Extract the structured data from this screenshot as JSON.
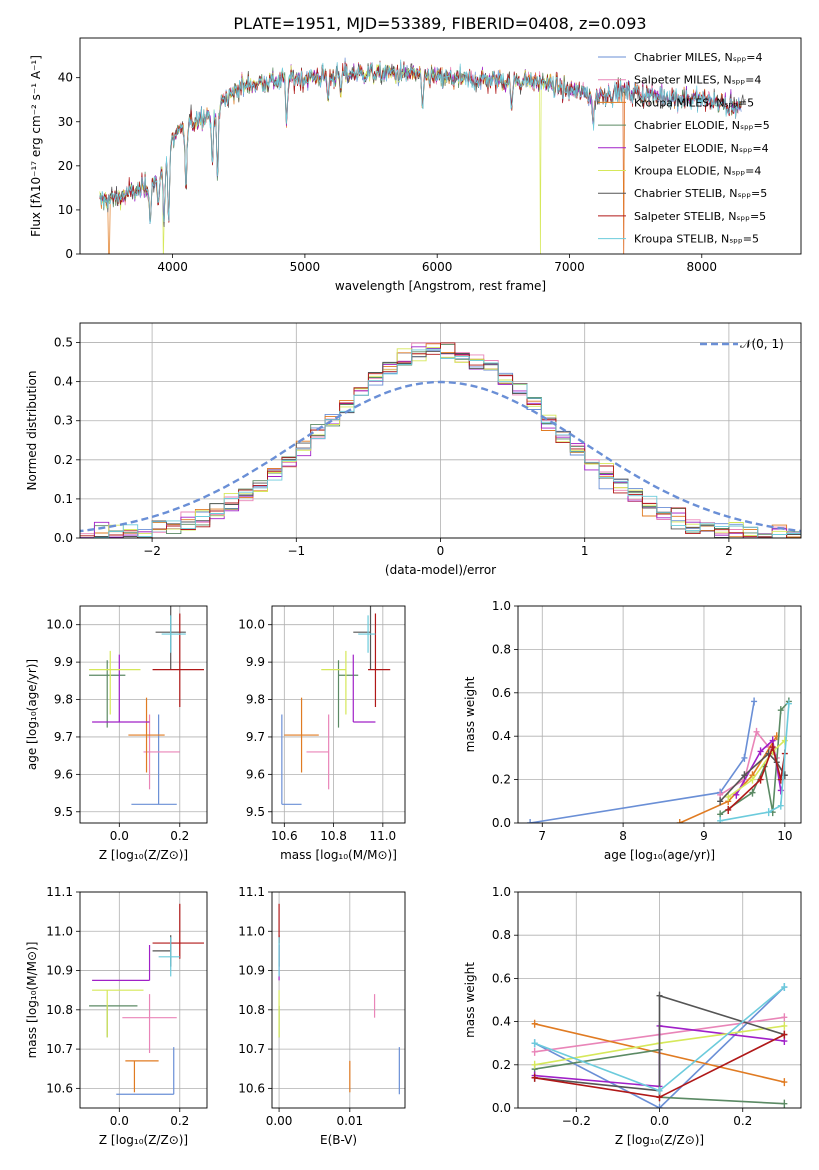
{
  "title": "PLATE=1951, MJD=53389, FIBERID=0408, z=0.093",
  "colors": {
    "Chabrier MILES": "#6a8fd6",
    "Salpeter MILES": "#e985b8",
    "Kroupa MILES": "#e07b22",
    "Chabrier ELODIE": "#5b8a64",
    "Salpeter ELODIE": "#a020c8",
    "Kroupa ELODIE": "#d6e85a",
    "Chabrier STELIB": "#555555",
    "Salpeter STELIB": "#b01818",
    "Kroupa STELIB": "#6ccbdc"
  },
  "chart_data": [
    {
      "type": "line",
      "id": "spectrum",
      "xlabel": "wavelength [Angstrom, rest frame]",
      "ylabel": "Flux [fλ10⁻¹⁷ erg cm⁻² s⁻¹ A⁻¹]",
      "xlim": [
        3300,
        8750
      ],
      "ylim": [
        0,
        49
      ],
      "xticks": [
        4000,
        5000,
        6000,
        7000,
        8000
      ],
      "yticks": [
        0,
        10,
        20,
        30,
        40
      ],
      "legend_position": "top-right",
      "legend": [
        {
          "label": "Chabrier MILES, Nₛₚₚ=4",
          "series": "Chabrier MILES"
        },
        {
          "label": "Salpeter MILES, Nₛₚₚ=4",
          "series": "Salpeter MILES"
        },
        {
          "label": "Kroupa MILES, Nₛₚₚ=5",
          "series": "Kroupa MILES"
        },
        {
          "label": "Chabrier ELODIE, Nₛₚₚ=5",
          "series": "Chabrier ELODIE"
        },
        {
          "label": "Salpeter ELODIE, Nₛₚₚ=4",
          "series": "Salpeter ELODIE"
        },
        {
          "label": "Kroupa ELODIE, Nₛₚₚ=4",
          "series": "Kroupa ELODIE"
        },
        {
          "label": "Chabrier STELIB, Nₛₚₚ=5",
          "series": "Chabrier STELIB"
        },
        {
          "label": "Salpeter STELIB, Nₛₚₚ=5",
          "series": "Salpeter STELIB"
        },
        {
          "label": "Kroupa STELIB, Nₛₚₚ=5",
          "series": "Kroupa STELIB"
        }
      ],
      "continuum": {
        "x": [
          3450,
          3600,
          3750,
          3900,
          4000,
          4100,
          4200,
          4300,
          4500,
          4700,
          5000,
          5300,
          5500,
          5800,
          6000,
          6200,
          6400,
          6600,
          6800,
          7000,
          7200,
          7400,
          7600,
          7800,
          8000,
          8200,
          8300
        ],
        "y": [
          12,
          13,
          14.5,
          17,
          26,
          29,
          31,
          32,
          38,
          39,
          40,
          41,
          41,
          41,
          40,
          39.5,
          39.5,
          39.5,
          39,
          37,
          36,
          37,
          36,
          35.5,
          35,
          34,
          33.5
        ]
      },
      "dips": {
        "x": [
          3830,
          3890,
          3935,
          3970,
          4101,
          4300,
          4340,
          4861,
          5175,
          5270,
          5890,
          6563,
          7180,
          8200
        ],
        "y": [
          7,
          11,
          7,
          7,
          14,
          20,
          17,
          30,
          35,
          36,
          33,
          33,
          29,
          32
        ]
      },
      "drops": {
        "x": [
          3520,
          3930,
          6780,
          7410
        ],
        "y": [
          0,
          0,
          0,
          0
        ]
      }
    },
    {
      "type": "bar",
      "id": "residuals",
      "xlabel": "(data-model)/error",
      "ylabel": "Normed distribution",
      "xlim": [
        -2.5,
        2.5
      ],
      "ylim": [
        0,
        0.55
      ],
      "xticks": [
        -2,
        -1,
        0,
        1,
        2
      ],
      "yticks": [
        0.0,
        0.1,
        0.2,
        0.3,
        0.4,
        0.5
      ],
      "legend_position": "top-right",
      "reference_label": "𝒩(0, 1)",
      "bin_width": 0.1,
      "reference": "gaussian mean 0 sigma 1"
    },
    {
      "type": "scatter",
      "id": "age-vs-Z",
      "xlabel": "Z [log₁₀(Z/Z⊙)]",
      "ylabel": "age  [log₁₀(age/yr)]",
      "xlim": [
        -0.13,
        0.29
      ],
      "ylim": [
        9.47,
        10.05
      ],
      "xticks": [
        0.0,
        0.2
      ],
      "yticks": [
        9.5,
        9.6,
        9.7,
        9.8,
        9.9,
        10.0
      ],
      "points": [
        {
          "series": "Chabrier MILES",
          "x": 0.13,
          "y": 9.52,
          "xerr": [
            0.09,
            0.06
          ],
          "yerr": [
            0.0,
            0.24
          ]
        },
        {
          "series": "Salpeter MILES",
          "x": 0.1,
          "y": 9.66,
          "xerr": [
            0.02,
            0.1
          ],
          "yerr": [
            0.1,
            0.1
          ]
        },
        {
          "series": "Kroupa MILES",
          "x": 0.09,
          "y": 9.705,
          "xerr": [
            0.06,
            0.06
          ],
          "yerr": [
            0.1,
            0.1
          ]
        },
        {
          "series": "Chabrier ELODIE",
          "x": -0.04,
          "y": 9.865,
          "xerr": [
            0.06,
            0.06
          ],
          "yerr": [
            0.14,
            0.04
          ]
        },
        {
          "series": "Salpeter ELODIE",
          "x": 0.0,
          "y": 9.74,
          "xerr": [
            0.09,
            0.1
          ],
          "yerr": [
            0.0,
            0.18
          ]
        },
        {
          "series": "Kroupa ELODIE",
          "x": -0.03,
          "y": 9.88,
          "xerr": [
            0.07,
            0.1
          ],
          "yerr": [
            0.12,
            0.05
          ]
        },
        {
          "series": "Chabrier STELIB",
          "x": 0.17,
          "y": 9.98,
          "xerr": [
            0.05,
            0.05
          ],
          "yerr": [
            0.1,
            0.07
          ]
        },
        {
          "series": "Salpeter STELIB",
          "x": 0.2,
          "y": 9.88,
          "xerr": [
            0.09,
            0.08
          ],
          "yerr": [
            0.1,
            0.15
          ]
        },
        {
          "series": "Kroupa STELIB",
          "x": 0.17,
          "y": 9.975,
          "xerr": [
            0.03,
            0.05
          ],
          "yerr": [
            0.05,
            0.05
          ]
        }
      ]
    },
    {
      "type": "scatter",
      "id": "age-vs-mass",
      "xlabel": "mass [log₁₀(M/M⊙)]",
      "ylabel": "",
      "xlim": [
        10.55,
        11.09
      ],
      "ylim": [
        9.47,
        10.05
      ],
      "xticks": [
        10.6,
        10.8,
        11.0
      ],
      "yticks": [
        9.5,
        9.6,
        9.7,
        9.8,
        9.9,
        10.0
      ],
      "points": [
        {
          "series": "Chabrier MILES",
          "x": 10.59,
          "y": 9.52,
          "xerr": [
            0.0,
            0.08
          ],
          "yerr": [
            0.0,
            0.24
          ]
        },
        {
          "series": "Salpeter MILES",
          "x": 10.78,
          "y": 9.66,
          "xerr": [
            0.09,
            0.0
          ],
          "yerr": [
            0.1,
            0.1
          ]
        },
        {
          "series": "Kroupa MILES",
          "x": 10.67,
          "y": 9.705,
          "xerr": [
            0.07,
            0.07
          ],
          "yerr": [
            0.1,
            0.1
          ]
        },
        {
          "series": "Chabrier ELODIE",
          "x": 10.82,
          "y": 9.865,
          "xerr": [
            0.0,
            0.08
          ],
          "yerr": [
            0.14,
            0.04
          ]
        },
        {
          "series": "Salpeter ELODIE",
          "x": 10.88,
          "y": 9.74,
          "xerr": [
            0.0,
            0.09
          ],
          "yerr": [
            0.0,
            0.18
          ]
        },
        {
          "series": "Kroupa ELODIE",
          "x": 10.85,
          "y": 9.88,
          "xerr": [
            0.1,
            0.0
          ],
          "yerr": [
            0.12,
            0.05
          ]
        },
        {
          "series": "Chabrier STELIB",
          "x": 10.95,
          "y": 9.98,
          "xerr": [
            0.07,
            0.0
          ],
          "yerr": [
            0.1,
            0.07
          ]
        },
        {
          "series": "Salpeter STELIB",
          "x": 10.97,
          "y": 9.88,
          "xerr": [
            0.03,
            0.06
          ],
          "yerr": [
            0.1,
            0.15
          ]
        },
        {
          "series": "Kroupa STELIB",
          "x": 10.94,
          "y": 9.975,
          "xerr": [
            0.04,
            0.03
          ],
          "yerr": [
            0.05,
            0.05
          ]
        }
      ]
    },
    {
      "type": "line",
      "id": "weight-vs-age",
      "xlabel": "age  [log₁₀(age/yr)]",
      "ylabel": "mass weight",
      "xlim": [
        6.7,
        10.2
      ],
      "ylim": [
        0,
        1
      ],
      "xticks": [
        7,
        8,
        9,
        10
      ],
      "yticks": [
        0.0,
        0.2,
        0.4,
        0.6,
        0.8,
        1.0
      ],
      "series": [
        {
          "name": "Chabrier MILES",
          "x": [
            6.85,
            9.2,
            9.5,
            9.62
          ],
          "y": [
            0.0,
            0.14,
            0.3,
            0.56
          ]
        },
        {
          "name": "Salpeter MILES",
          "x": [
            9.2,
            9.5,
            9.65,
            9.8,
            9.9
          ],
          "y": [
            0.13,
            0.2,
            0.42,
            0.35,
            0.3
          ]
        },
        {
          "name": "Kroupa MILES",
          "x": [
            8.7,
            9.3,
            9.6,
            9.9
          ],
          "y": [
            0.0,
            0.1,
            0.22,
            0.4
          ]
        },
        {
          "name": "Chabrier ELODIE",
          "x": [
            9.2,
            9.6,
            9.75,
            9.85,
            9.95,
            10.05
          ],
          "y": [
            0.04,
            0.14,
            0.26,
            0.05,
            0.52,
            0.56
          ]
        },
        {
          "name": "Salpeter ELODIE",
          "x": [
            9.4,
            9.7,
            9.85,
            9.95
          ],
          "y": [
            0.13,
            0.33,
            0.38,
            0.15
          ]
        },
        {
          "name": "Kroupa ELODIE",
          "x": [
            9.3,
            9.6,
            9.85,
            10.0
          ],
          "y": [
            0.12,
            0.2,
            0.33,
            0.38
          ]
        },
        {
          "name": "Chabrier STELIB",
          "x": [
            9.2,
            9.5,
            9.8,
            9.9,
            10.0
          ],
          "y": [
            0.1,
            0.22,
            0.32,
            0.28,
            0.22
          ]
        },
        {
          "name": "Salpeter STELIB",
          "x": [
            9.3,
            9.7,
            9.85,
            9.95,
            10.0
          ],
          "y": [
            0.06,
            0.2,
            0.35,
            0.2,
            0.32
          ]
        },
        {
          "name": "Kroupa STELIB",
          "x": [
            9.2,
            9.8,
            9.95,
            10.05
          ],
          "y": [
            0.01,
            0.05,
            0.08,
            0.55
          ]
        }
      ]
    },
    {
      "type": "scatter",
      "id": "mass-vs-Z",
      "xlabel": "Z [log₁₀(Z/Z⊙)]",
      "ylabel": "mass [log₁₀(M/M⊙)]",
      "xlim": [
        -0.13,
        0.29
      ],
      "ylim": [
        10.55,
        11.1
      ],
      "xticks": [
        0.0,
        0.2
      ],
      "yticks": [
        10.6,
        10.7,
        10.8,
        10.9,
        11.0,
        11.1
      ],
      "points": [
        {
          "series": "Chabrier MILES",
          "x": 0.18,
          "y": 10.585,
          "xerr": [
            0.19,
            0.0
          ],
          "yerr": [
            0.0,
            0.12
          ]
        },
        {
          "series": "Salpeter MILES",
          "x": 0.1,
          "y": 10.78,
          "xerr": [
            0.09,
            0.09
          ],
          "yerr": [
            0.09,
            0.06
          ]
        },
        {
          "series": "Kroupa MILES",
          "x": 0.05,
          "y": 10.67,
          "xerr": [
            0.03,
            0.08
          ],
          "yerr": [
            0.08,
            0.0
          ]
        },
        {
          "series": "Chabrier ELODIE",
          "x": -0.04,
          "y": 10.81,
          "xerr": [
            0.06,
            0.1
          ],
          "yerr": [
            0.08,
            0.0
          ]
        },
        {
          "series": "Salpeter ELODIE",
          "x": 0.1,
          "y": 10.875,
          "xerr": [
            0.19,
            0.0
          ],
          "yerr": [
            0.0,
            0.09
          ]
        },
        {
          "series": "Kroupa ELODIE",
          "x": -0.04,
          "y": 10.85,
          "xerr": [
            0.05,
            0.12
          ],
          "yerr": [
            0.12,
            0.0
          ]
        },
        {
          "series": "Chabrier STELIB",
          "x": 0.17,
          "y": 10.95,
          "xerr": [
            0.06,
            0.0
          ],
          "yerr": [
            0.04,
            0.04
          ]
        },
        {
          "series": "Salpeter STELIB",
          "x": 0.2,
          "y": 10.97,
          "xerr": [
            0.09,
            0.08
          ],
          "yerr": [
            0.04,
            0.1
          ]
        },
        {
          "series": "Kroupa STELIB",
          "x": 0.17,
          "y": 10.935,
          "xerr": [
            0.04,
            0.03
          ],
          "yerr": [
            0.05,
            0.05
          ]
        }
      ]
    },
    {
      "type": "scatter",
      "id": "mass-vs-EBV",
      "xlabel": "E(B-V)",
      "ylabel": "",
      "xlim": [
        -0.001,
        0.0178
      ],
      "ylim": [
        10.55,
        11.1
      ],
      "xticks": [
        0.0,
        0.01
      ],
      "yticks": [
        10.6,
        10.7,
        10.8,
        10.9,
        11.0,
        11.1
      ],
      "points": [
        {
          "series": "Chabrier MILES",
          "x": 0.017,
          "y": 10.585,
          "xerr": [
            0,
            0
          ],
          "yerr": [
            0.0,
            0.12
          ]
        },
        {
          "series": "Salpeter MILES",
          "x": 0.0135,
          "y": 10.78,
          "xerr": [
            0,
            0
          ],
          "yerr": [
            0.0,
            0.06
          ]
        },
        {
          "series": "Kroupa MILES",
          "x": 0.01,
          "y": 10.67,
          "xerr": [
            0,
            0
          ],
          "yerr": [
            0.08,
            0.0
          ]
        },
        {
          "series": "Chabrier ELODIE",
          "x": 0.0,
          "y": 10.81,
          "xerr": [
            0,
            0
          ],
          "yerr": [
            0.08,
            0.0
          ]
        },
        {
          "series": "Salpeter ELODIE",
          "x": 0.0,
          "y": 10.875,
          "xerr": [
            0,
            0
          ],
          "yerr": [
            0.0,
            0.09
          ]
        },
        {
          "series": "Kroupa ELODIE",
          "x": 0.0,
          "y": 10.85,
          "xerr": [
            0,
            0
          ],
          "yerr": [
            0.12,
            0.0
          ]
        },
        {
          "series": "Chabrier STELIB",
          "x": 0.0,
          "y": 10.95,
          "xerr": [
            0,
            0
          ],
          "yerr": [
            0.04,
            0.04
          ]
        },
        {
          "series": "Salpeter STELIB",
          "x": 0.0,
          "y": 10.97,
          "xerr": [
            0,
            0
          ],
          "yerr": [
            0.0,
            0.1
          ]
        },
        {
          "series": "Kroupa STELIB",
          "x": 0.0,
          "y": 10.935,
          "xerr": [
            0,
            0
          ],
          "yerr": [
            0.05,
            0.05
          ]
        }
      ]
    },
    {
      "type": "line",
      "id": "weight-vs-Z",
      "xlabel": "Z [log₁₀(Z/Z⊙)]",
      "ylabel": "mass weight",
      "xlim": [
        -0.34,
        0.34
      ],
      "ylim": [
        0,
        1
      ],
      "xticks": [
        -0.2,
        0.0,
        0.2
      ],
      "yticks": [
        0.0,
        0.2,
        0.4,
        0.6,
        0.8,
        1.0
      ],
      "series": [
        {
          "name": "Chabrier MILES",
          "x": [
            -0.3,
            0.0,
            0.3
          ],
          "y": [
            0.3,
            0.0,
            0.56
          ]
        },
        {
          "name": "Salpeter MILES",
          "x": [
            -0.3,
            0.0,
            0.3
          ],
          "y": [
            0.26,
            0.34,
            0.42
          ]
        },
        {
          "name": "Kroupa MILES",
          "x": [
            -0.3,
            0.3
          ],
          "y": [
            0.39,
            0.12
          ]
        },
        {
          "name": "Chabrier ELODIE",
          "x": [
            -0.3,
            0.0,
            0.0,
            0.3
          ],
          "y": [
            0.18,
            0.27,
            0.05,
            0.02
          ]
        },
        {
          "name": "Salpeter ELODIE",
          "x": [
            -0.3,
            0.0,
            0.0,
            0.3
          ],
          "y": [
            0.15,
            0.1,
            0.38,
            0.31
          ]
        },
        {
          "name": "Kroupa ELODIE",
          "x": [
            -0.3,
            0.0,
            0.3
          ],
          "y": [
            0.2,
            0.3,
            0.38
          ]
        },
        {
          "name": "Chabrier STELIB",
          "x": [
            -0.3,
            0.0,
            0.0,
            0.3
          ],
          "y": [
            0.14,
            0.08,
            0.52,
            0.34
          ]
        },
        {
          "name": "Salpeter STELIB",
          "x": [
            -0.3,
            0.0,
            0.3
          ],
          "y": [
            0.14,
            0.05,
            0.34
          ]
        },
        {
          "name": "Kroupa STELIB",
          "x": [
            -0.3,
            0.0,
            0.3
          ],
          "y": [
            0.3,
            0.08,
            0.56
          ]
        }
      ]
    }
  ]
}
